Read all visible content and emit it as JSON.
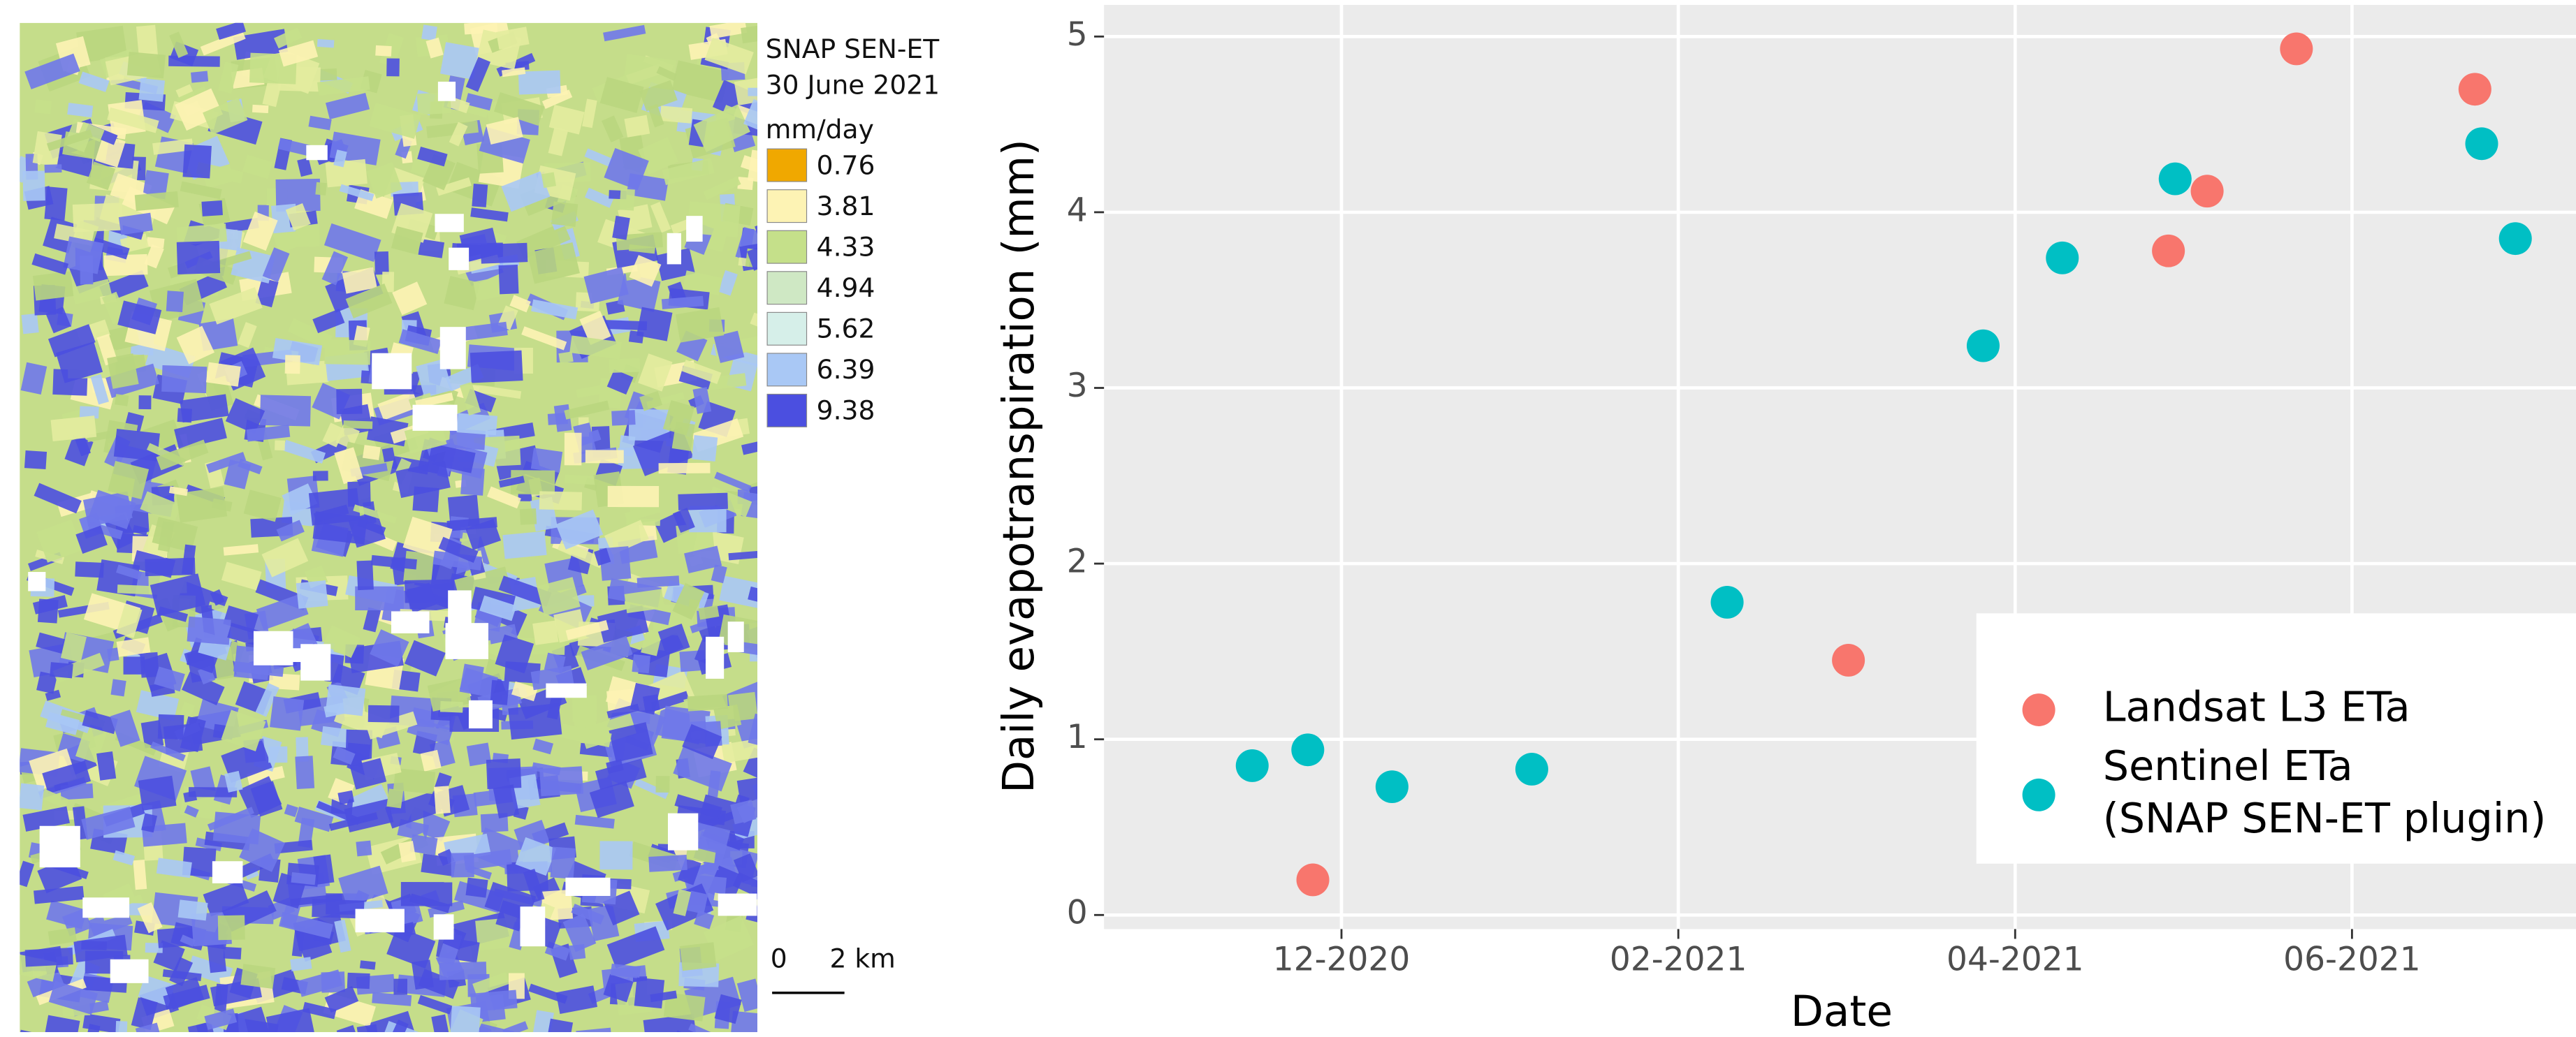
{
  "map": {
    "title": "SNAP SEN-ET",
    "date": "30 June 2021",
    "unit": "mm/day",
    "legend": [
      {
        "label": "0.76",
        "color": "#f0a800"
      },
      {
        "label": "3.81",
        "color": "#fdf3b4"
      },
      {
        "label": "4.33",
        "color": "#c5e08a"
      },
      {
        "label": "4.94",
        "color": "#cfe8c4"
      },
      {
        "label": "5.62",
        "color": "#d6efe9"
      },
      {
        "label": "6.39",
        "color": "#a9c8f5"
      },
      {
        "label": "9.38",
        "color": "#4b4fe0"
      }
    ],
    "scale_start": "0",
    "scale_end": "2 km"
  },
  "chart_data": {
    "type": "scatter",
    "x_label": "Date",
    "y_label": "Daily evapotranspiration (mm)",
    "xlim": [
      10.59,
      19.33
    ],
    "xticks": [
      {
        "value": 12,
        "label": "12-2020"
      },
      {
        "value": 14,
        "label": "02-2021"
      },
      {
        "value": 16,
        "label": "04-2021"
      },
      {
        "value": 18,
        "label": "06-2021"
      }
    ],
    "ylim": [
      -0.08,
      5.18
    ],
    "yticks": [
      0,
      1,
      2,
      3,
      4,
      5
    ],
    "grid": true,
    "legend_position": "bottom-right",
    "series": [
      {
        "name": "Landsat L3 ETa",
        "color": "#f8766d",
        "x": [
          11.83,
          15.01,
          16.91,
          17.14,
          17.67,
          18.73
        ],
        "values": [
          0.2,
          1.45,
          3.78,
          4.12,
          4.93,
          4.7
        ]
      },
      {
        "name": "Sentinel ETa\n(SNAP SEN-ET plugin)",
        "color": "#00bfc4",
        "x": [
          11.47,
          11.8,
          12.3,
          13.13,
          14.29,
          15.81,
          16.28,
          16.95,
          18.77,
          18.97
        ],
        "values": [
          0.85,
          0.94,
          0.73,
          0.83,
          1.78,
          3.24,
          3.74,
          4.19,
          4.39,
          3.85
        ]
      }
    ]
  }
}
